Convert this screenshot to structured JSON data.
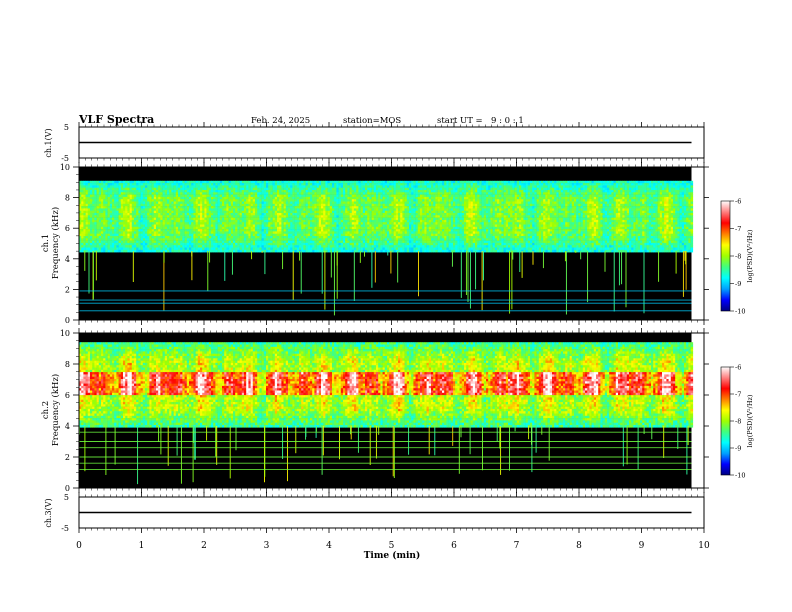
{
  "header": {
    "title": "VLF Spectra",
    "date": "Feb. 24, 2025",
    "station": "station=MOS",
    "start_label": "start UT =",
    "start_time": "9 : 0 : 1"
  },
  "chart_data": [
    {
      "type": "line",
      "panel": "ch1-waveform",
      "ylabel": "ch.1(V)",
      "ylim": [
        -5,
        5
      ],
      "yticks": [
        "5",
        "-5"
      ],
      "xlim": [
        0,
        10
      ],
      "series": [
        {
          "x": [
            0,
            9.8
          ],
          "values": [
            0,
            0
          ]
        }
      ]
    },
    {
      "type": "heatmap",
      "panel": "ch1-spectrogram",
      "ylabel_line1": "ch.1",
      "ylabel_line2": "Frequency (kHz)",
      "ylim": [
        0,
        10
      ],
      "yticks": [
        "0",
        "2",
        "4",
        "6",
        "8",
        "10"
      ],
      "xlim": [
        0,
        10
      ],
      "data_xmax": 9.8,
      "dominant_band_khz": [
        4.5,
        9.2
      ],
      "lines_khz": [
        0.6,
        1.1,
        1.3,
        1.9
      ],
      "colorbar": {
        "label": "log(PSD)(V²/Hz)",
        "ticks": [
          "-6",
          "-7",
          "-8",
          "-9",
          "-10"
        ],
        "range": [
          -10,
          -6
        ]
      }
    },
    {
      "type": "heatmap",
      "panel": "ch2-spectrogram",
      "ylabel_line1": "ch.2",
      "ylabel_line2": "Frequency (kHz)",
      "ylim": [
        0,
        10
      ],
      "yticks": [
        "0",
        "2",
        "4",
        "6",
        "8",
        "10"
      ],
      "xlim": [
        0,
        10
      ],
      "data_xmax": 9.8,
      "dominant_band_khz": [
        4.0,
        9.5
      ],
      "peak_band_khz": [
        6.0,
        7.6
      ],
      "lines_khz": [
        1.2,
        1.6,
        2.0,
        2.6,
        3.0,
        3.6
      ],
      "colorbar": {
        "label": "log(PSD)(V²/Hz)",
        "ticks": [
          "-6",
          "-7",
          "-8",
          "-9",
          "-10"
        ],
        "range": [
          -10,
          -6
        ]
      }
    },
    {
      "type": "line",
      "panel": "ch3-waveform",
      "ylabel": "ch.3(V)",
      "ylim": [
        -5,
        5
      ],
      "yticks": [
        "5",
        "-5"
      ],
      "xlim": [
        0,
        10
      ],
      "series": [
        {
          "x": [
            0,
            9.8
          ],
          "values": [
            0,
            0
          ]
        }
      ]
    }
  ],
  "xaxis": {
    "label": "Time (min)",
    "ticks": [
      "0",
      "1",
      "2",
      "3",
      "4",
      "5",
      "6",
      "7",
      "8",
      "9",
      "10"
    ]
  },
  "colors": {
    "background": "#000000",
    "frame": "#000000",
    "colormap": [
      "#000080",
      "#0000ff",
      "#00a0ff",
      "#00ffff",
      "#40ff80",
      "#a0ff00",
      "#ffff00",
      "#ff8000",
      "#ff0000",
      "#ff8080",
      "#ffffff"
    ]
  }
}
